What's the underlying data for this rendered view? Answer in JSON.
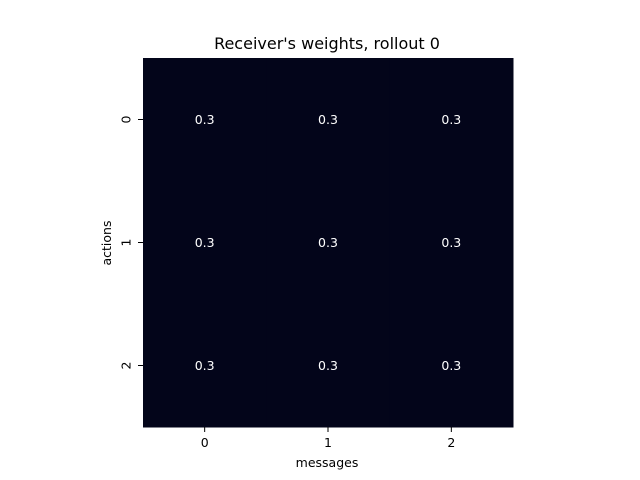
{
  "chart_data": {
    "type": "heatmap",
    "title": "Receiver's weights, rollout 0",
    "xlabel": "messages",
    "ylabel": "actions",
    "x_categories": [
      "0",
      "1",
      "2"
    ],
    "y_categories": [
      "0",
      "1",
      "2"
    ],
    "values": [
      [
        0.3,
        0.3,
        0.3
      ],
      [
        0.3,
        0.3,
        0.3
      ],
      [
        0.3,
        0.3,
        0.3
      ]
    ],
    "annotations": [
      [
        "0.3",
        "0.3",
        "0.3"
      ],
      [
        "0.3",
        "0.3",
        "0.3"
      ],
      [
        "0.3",
        "0.3",
        "0.3"
      ]
    ],
    "cell_color": "#03051a",
    "annotation_color": "#ffffff",
    "colorbar": false,
    "grid": false
  }
}
